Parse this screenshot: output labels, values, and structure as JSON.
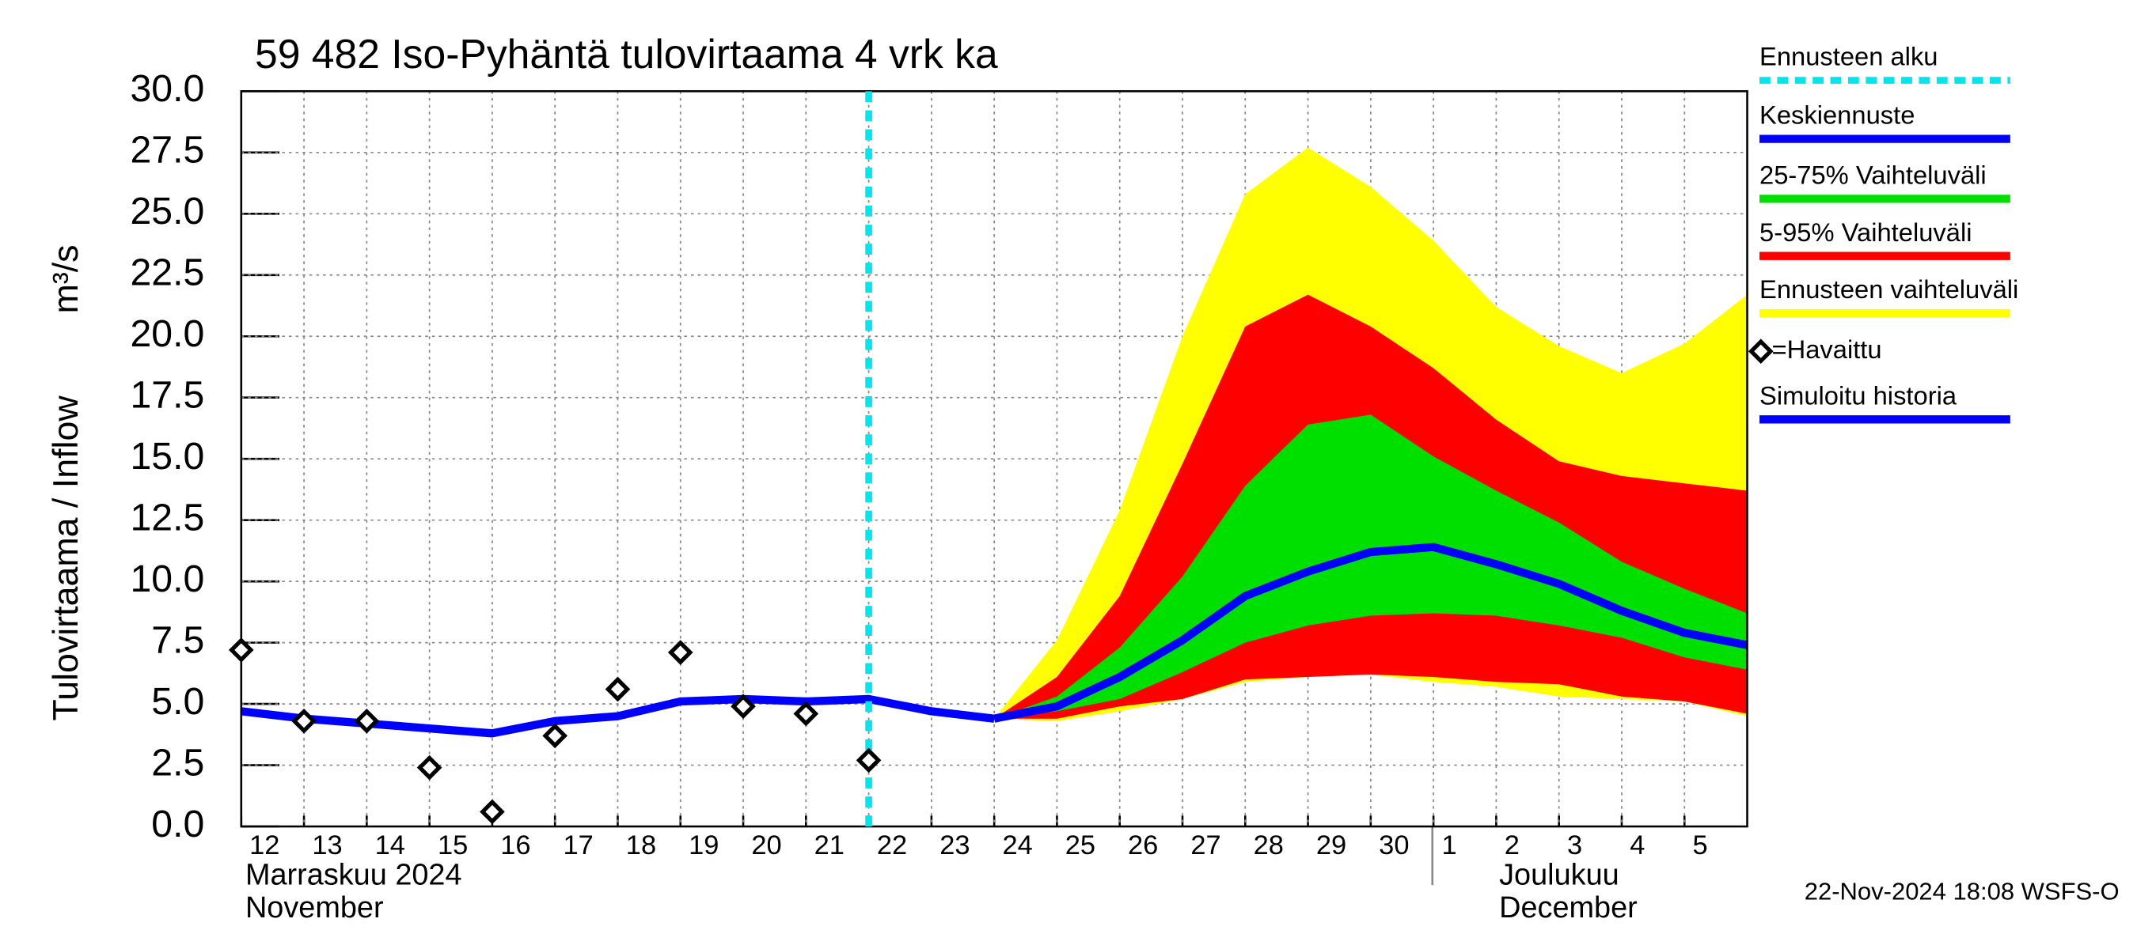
{
  "chart_data": {
    "type": "forecast",
    "title": "59 482 Iso-Pyhäntä tulovirtaama 4 vrk ka",
    "y_label": "Tulovirtaama / Inflow",
    "y_unit": "m³/s",
    "x_axis_labels": [
      "Marraskuu 2024",
      "November",
      "Joulukuu",
      "December"
    ],
    "footer": "22-Nov-2024 18:08 WSFS-O",
    "xlim": [
      "2024-11-12",
      "2024-12-06"
    ],
    "xticks": [
      {
        "value": "2024-11-12",
        "label": "12"
      },
      {
        "value": "2024-11-13",
        "label": "13"
      },
      {
        "value": "2024-11-14",
        "label": "14"
      },
      {
        "value": "2024-11-15",
        "label": "15"
      },
      {
        "value": "2024-11-16",
        "label": "16"
      },
      {
        "value": "2024-11-17",
        "label": "17"
      },
      {
        "value": "2024-11-18",
        "label": "18"
      },
      {
        "value": "2024-11-19",
        "label": "19"
      },
      {
        "value": "2024-11-20",
        "label": "20"
      },
      {
        "value": "2024-11-21",
        "label": "21"
      },
      {
        "value": "2024-11-22",
        "label": "22"
      },
      {
        "value": "2024-11-23",
        "label": "23"
      },
      {
        "value": "2024-11-24",
        "label": "24"
      },
      {
        "value": "2024-11-25",
        "label": "25"
      },
      {
        "value": "2024-11-26",
        "label": "26"
      },
      {
        "value": "2024-11-27",
        "label": "27"
      },
      {
        "value": "2024-11-28",
        "label": "28"
      },
      {
        "value": "2024-11-29",
        "label": "29"
      },
      {
        "value": "2024-11-30",
        "label": "30"
      },
      {
        "value": "2024-12-01",
        "label": "1"
      },
      {
        "value": "2024-12-02",
        "label": "2"
      },
      {
        "value": "2024-12-03",
        "label": "3"
      },
      {
        "value": "2024-12-04",
        "label": "4"
      },
      {
        "value": "2024-12-05",
        "label": "5"
      }
    ],
    "ylim": [
      0,
      30
    ],
    "yticks": [
      {
        "value": 0,
        "label": "0.0"
      },
      2.5,
      {
        "value": 5,
        "label": "5.0"
      },
      7.5,
      {
        "value": 10,
        "label": "10.0"
      },
      12.5,
      {
        "value": 15,
        "label": "15.0"
      },
      17.5,
      {
        "value": 20,
        "label": "20.0"
      },
      22.5,
      {
        "value": 25,
        "label": "25.0"
      },
      27.5,
      {
        "value": 30,
        "label": "30.0"
      }
    ],
    "grid": true,
    "forecast_start": {
      "name": "Ennusteen alku",
      "color": "#00e5ee",
      "x": "2024-11-22"
    },
    "series": [
      {
        "name": "Keskiennuste",
        "kind": "line",
        "color": "#0000ff",
        "x": [
          "2024-11-24",
          "2024-11-25",
          "2024-11-26",
          "2024-11-27",
          "2024-11-28",
          "2024-11-29",
          "2024-11-30",
          "2024-12-01",
          "2024-12-02",
          "2024-12-03",
          "2024-12-04",
          "2024-12-05",
          "2024-12-06"
        ],
        "values": [
          4.4,
          4.9,
          6.1,
          7.6,
          9.4,
          10.4,
          11.2,
          11.4,
          10.7,
          9.9,
          8.8,
          7.9,
          7.4
        ]
      },
      {
        "name": "25-75% Vaihteluväli",
        "kind": "band",
        "color": "#00e000",
        "x": [
          "2024-11-24",
          "2024-11-25",
          "2024-11-26",
          "2024-11-27",
          "2024-11-28",
          "2024-11-29",
          "2024-11-30",
          "2024-12-01",
          "2024-12-02",
          "2024-12-03",
          "2024-12-04",
          "2024-12-05",
          "2024-12-06"
        ],
        "lower": [
          4.4,
          4.7,
          5.2,
          6.3,
          7.5,
          8.2,
          8.6,
          8.7,
          8.6,
          8.2,
          7.7,
          6.9,
          6.4
        ],
        "upper": [
          4.4,
          5.3,
          7.3,
          10.2,
          13.9,
          16.4,
          16.8,
          15.1,
          13.7,
          12.4,
          10.8,
          9.7,
          8.7
        ]
      },
      {
        "name": "5-95% Vaihteluväli",
        "kind": "band",
        "color": "#ff0000",
        "x": [
          "2024-11-24",
          "2024-11-25",
          "2024-11-26",
          "2024-11-27",
          "2024-11-28",
          "2024-11-29",
          "2024-11-30",
          "2024-12-01",
          "2024-12-02",
          "2024-12-03",
          "2024-12-04",
          "2024-12-05",
          "2024-12-06"
        ],
        "lower": [
          4.4,
          4.4,
          4.9,
          5.2,
          6.0,
          6.1,
          6.2,
          6.1,
          5.9,
          5.8,
          5.3,
          5.1,
          4.6
        ],
        "upper": [
          4.4,
          6.1,
          9.4,
          14.8,
          20.4,
          21.7,
          20.4,
          18.7,
          16.6,
          14.9,
          14.3,
          14.0,
          13.7
        ]
      },
      {
        "name": "Ennusteen vaihteluväli",
        "kind": "band",
        "color": "#ffff00",
        "x": [
          "2024-11-24",
          "2024-11-25",
          "2024-11-26",
          "2024-11-27",
          "2024-11-28",
          "2024-11-29",
          "2024-11-30",
          "2024-12-01",
          "2024-12-02",
          "2024-12-03",
          "2024-12-04",
          "2024-12-05",
          "2024-12-06"
        ],
        "lower": [
          4.4,
          4.3,
          4.7,
          5.2,
          5.9,
          6.1,
          6.2,
          5.9,
          5.7,
          5.3,
          5.2,
          5.1,
          4.5
        ],
        "upper": [
          4.4,
          7.6,
          12.9,
          20.0,
          25.8,
          27.7,
          26.1,
          23.9,
          21.2,
          19.6,
          18.5,
          19.7,
          21.7
        ]
      },
      {
        "name": "=Havaittu",
        "kind": "points",
        "color": "#000000",
        "x": [
          "2024-11-12",
          "2024-11-13",
          "2024-11-14",
          "2024-11-15",
          "2024-11-16",
          "2024-11-17",
          "2024-11-18",
          "2024-11-19",
          "2024-11-20",
          "2024-11-21",
          "2024-11-22"
        ],
        "values": [
          7.2,
          4.3,
          4.3,
          2.4,
          0.6,
          3.7,
          5.6,
          7.1,
          4.9,
          4.6,
          2.7
        ]
      },
      {
        "name": "Simuloitu historia",
        "kind": "line",
        "color": "#0000ff",
        "x": [
          "2024-11-12",
          "2024-11-13",
          "2024-11-14",
          "2024-11-15",
          "2024-11-16",
          "2024-11-17",
          "2024-11-18",
          "2024-11-19",
          "2024-11-20",
          "2024-11-21",
          "2024-11-22",
          "2024-11-23",
          "2024-11-24"
        ],
        "values": [
          4.7,
          4.4,
          4.2,
          4.0,
          3.8,
          4.3,
          4.5,
          5.1,
          5.2,
          5.1,
          5.2,
          4.7,
          4.4
        ]
      }
    ]
  }
}
